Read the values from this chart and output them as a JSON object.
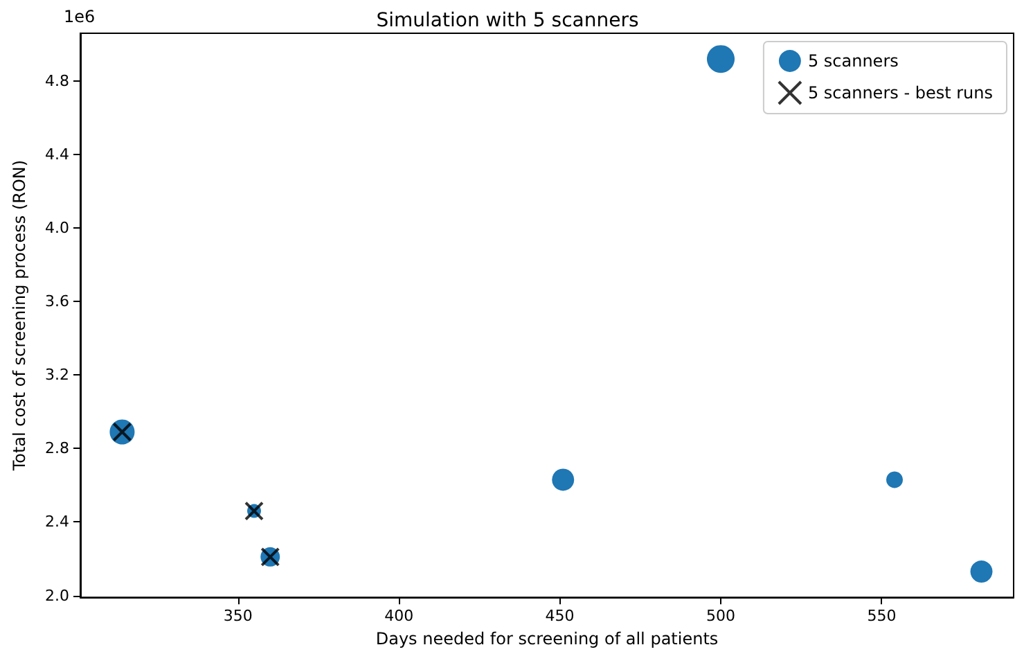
{
  "chart_data": {
    "type": "bubble",
    "title": "Simulation with 5 scanners",
    "xlabel": "Days needed for screening of all patients",
    "ylabel": "Total cost of screening process (RON)",
    "annotations": [
      "1e6"
    ],
    "series": [
      {
        "name": "5 scanners",
        "color": "#1f77b4",
        "x": [
          314,
          355,
          360,
          451,
          500,
          554,
          581
        ],
        "values": [
          2.89,
          2.46,
          2.21,
          2.63,
          4.92,
          2.63,
          2.13
        ],
        "sizes": [
          0.81,
          0.25,
          0.49,
          0.64,
          1,
          0.36,
          0.64
        ]
      },
      {
        "name": "5 scanners - best runs",
        "type": "scatter",
        "marker": "cross",
        "color": "#000000",
        "x": [
          314,
          355,
          360
        ],
        "values": [
          2.89,
          2.46,
          2.21
        ]
      }
    ],
    "xlim": [
      301,
      591
    ],
    "xticks": [
      350,
      400,
      450,
      500,
      550
    ],
    "ylim": [
      1.99,
      5.06
    ],
    "yticks": [
      {
        "value": 2,
        "label": "2.0"
      },
      {
        "value": 2.4,
        "label": "2.4"
      },
      {
        "value": 2.8,
        "label": "2.8"
      },
      {
        "value": 3.2,
        "label": "3.2"
      },
      {
        "value": 3.6,
        "label": "3.6"
      },
      {
        "value": 4,
        "label": "4.0"
      },
      {
        "value": 4.4,
        "label": "4.4"
      },
      {
        "value": 4.8,
        "label": "4.8"
      }
    ],
    "grid": false,
    "legend": "top right"
  }
}
